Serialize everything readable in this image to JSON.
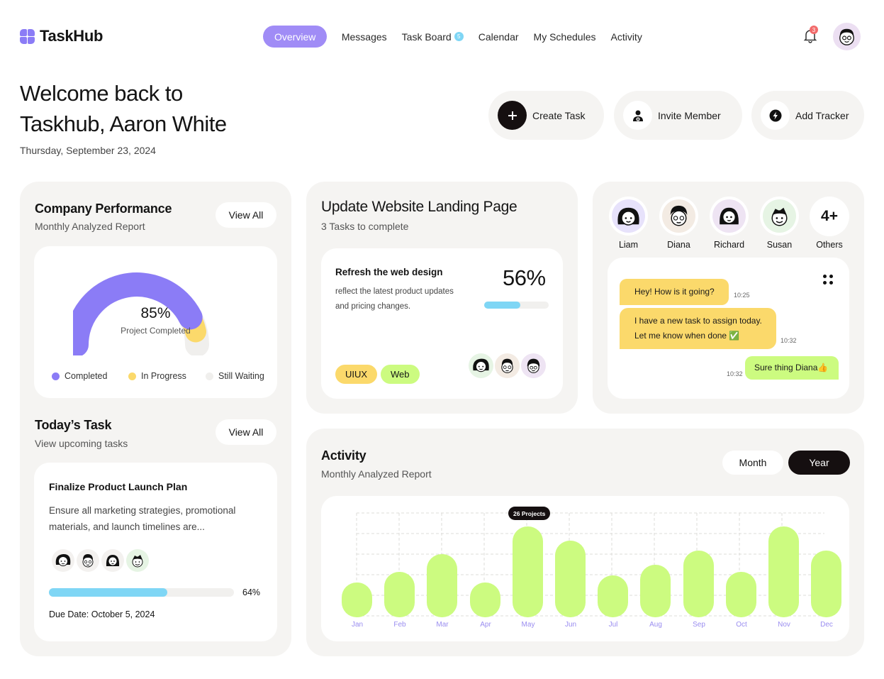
{
  "brand": {
    "name": "TaskHub"
  },
  "nav": {
    "items": [
      {
        "label": "Overview",
        "active": true
      },
      {
        "label": "Messages"
      },
      {
        "label": "Task Board",
        "badge": "5"
      },
      {
        "label": "Calendar"
      },
      {
        "label": "My Schedules"
      },
      {
        "label": "Activity"
      }
    ],
    "notifications": "3"
  },
  "welcome": {
    "line1": "Welcome back to",
    "line2": "Taskhub, Aaron White",
    "date": "Thursday, September 23, 2024"
  },
  "actions": {
    "create": "Create Task",
    "invite": "Invite Member",
    "tracker": "Add Tracker"
  },
  "performance": {
    "title": "Company Performance",
    "subtitle": "Monthly Analyzed Report",
    "view_all": "View All",
    "percent": "85%",
    "caption": "Project Completed",
    "progress_fraction": 0.85,
    "legend": [
      "Completed",
      "In Progress",
      "Still Waiting"
    ],
    "colors": {
      "completed": "#8b7cf6",
      "in_progress": "#fbd96b",
      "waiting": "#f0efed"
    }
  },
  "today": {
    "title": "Today’s Task",
    "subtitle": "View upcoming tasks",
    "view_all": "View All",
    "task_title": "Finalize Product Launch Plan",
    "task_desc_1": "Ensure all marketing strategies, promotional",
    "task_desc_2": "materials, and launch timelines are...",
    "progress": "64%",
    "progress_fraction": 0.64,
    "due": "Due Date: October 5, 2024"
  },
  "landing": {
    "title": "Update Website Landing Page",
    "subtitle": "3 Tasks to complete",
    "task_title": "Refresh the web design",
    "task_desc_1": "reflect the latest product updates",
    "task_desc_2": "and pricing changes.",
    "percent": "56%",
    "progress_fraction": 0.56,
    "tags": [
      "UIUX",
      "Web"
    ]
  },
  "chat": {
    "members": [
      "Liam",
      "Diana",
      "Richard",
      "Susan",
      "Others"
    ],
    "others_count": "4+",
    "messages": [
      {
        "text": "Hey! How is it going?",
        "time": "10:25"
      },
      {
        "text1": "I have a new task to assign today.",
        "text2": "Let me know when done ✅",
        "time": "10:32"
      },
      {
        "text": "Sure thing Diana👍",
        "time": "10:32"
      }
    ]
  },
  "activity": {
    "title": "Activity",
    "subtitle": "Monthly Analyzed Report",
    "toggle": [
      "Month",
      "Year"
    ],
    "selected": "Year",
    "tooltip": "26 Projects"
  },
  "chart_data": {
    "type": "bar",
    "categories": [
      "Jan",
      "Feb",
      "Mar",
      "Apr",
      "May",
      "Jun",
      "Jul",
      "Aug",
      "Sep",
      "Oct",
      "Nov",
      "Dec"
    ],
    "values": [
      10,
      13,
      18,
      10,
      26,
      22,
      12,
      15,
      19,
      13,
      26,
      19
    ],
    "annotation": {
      "category": "May",
      "text": "26 Projects"
    },
    "grid": true,
    "bar_color": "#ccfb80"
  }
}
